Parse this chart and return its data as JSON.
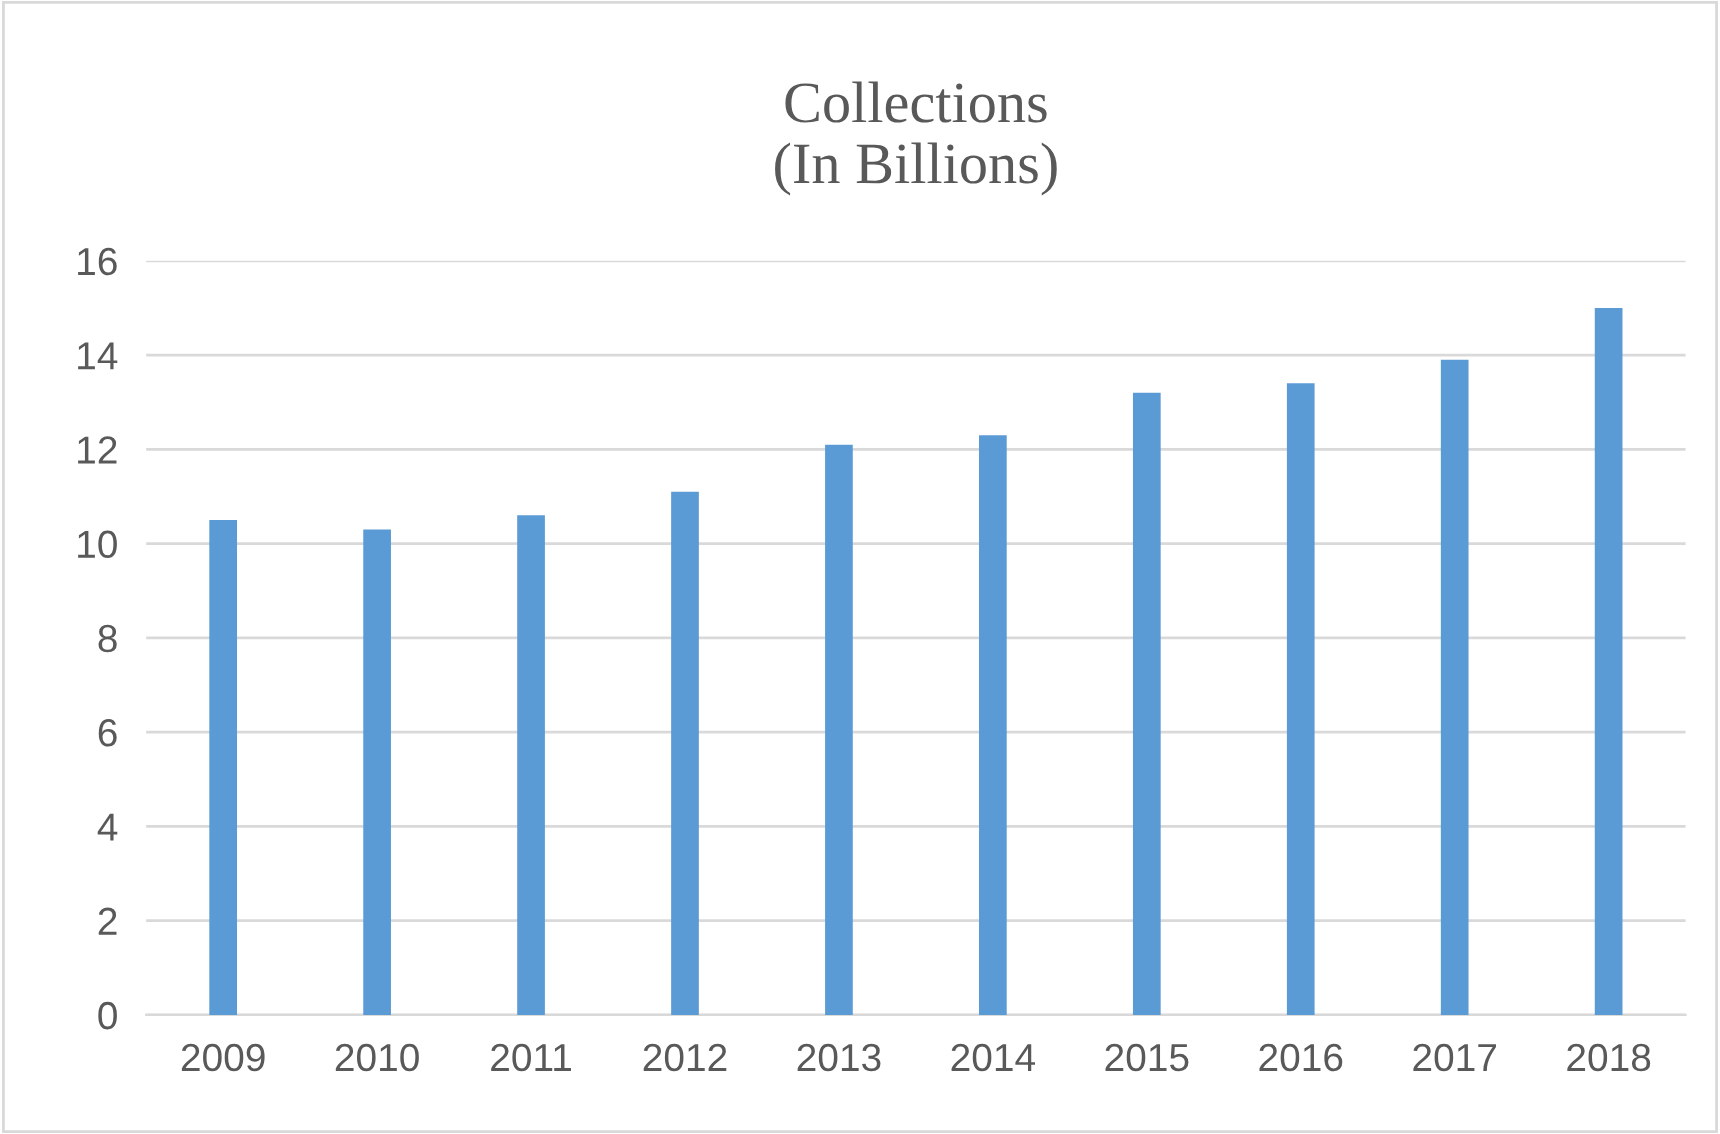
{
  "chart_data": {
    "type": "bar",
    "title": "Collections\n(In Billions)",
    "categories": [
      "2009",
      "2010",
      "2011",
      "2012",
      "2013",
      "2014",
      "2015",
      "2016",
      "2017",
      "2018"
    ],
    "values": [
      10.5,
      10.3,
      10.6,
      11.1,
      12.1,
      12.3,
      13.2,
      13.4,
      13.9,
      15.0
    ],
    "color": "#5b9bd5",
    "ylim": [
      0,
      16
    ],
    "yticks": [
      0,
      2,
      4,
      6,
      8,
      10,
      12,
      14,
      16
    ],
    "grid": "y"
  }
}
